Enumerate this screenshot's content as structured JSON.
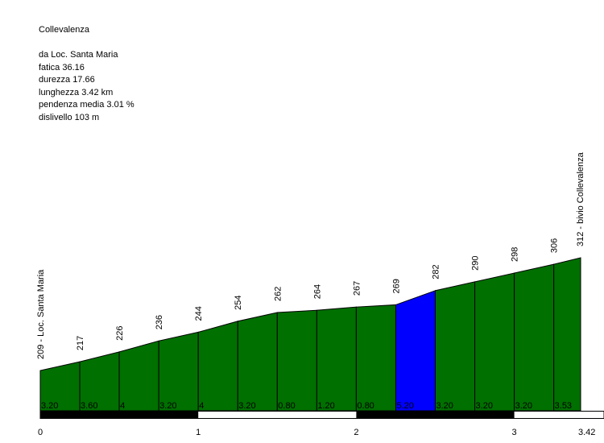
{
  "title": "Collevalenza",
  "stats": {
    "start": "da Loc. Santa Maria",
    "fatica": "fatica 36.16",
    "durezza": "durezza 17.66",
    "lunghezza": "lunghezza 3.42 km",
    "pendenza": "pendenza media 3.01 %",
    "dislivello": "dislivello 103 m"
  },
  "colors": {
    "fill": "#007000",
    "highlight": "#0000ff",
    "bar": "#000000"
  },
  "chart_data": {
    "type": "area",
    "xlabel": "",
    "ylabel": "",
    "x_unit": "km",
    "x_ticks": [
      "0",
      "1",
      "2",
      "3",
      "3.42"
    ],
    "x_tick_values": [
      0,
      1,
      2,
      3,
      3.42
    ],
    "distance_km": [
      0,
      0.25,
      0.5,
      0.75,
      1.0,
      1.25,
      1.5,
      1.75,
      2.0,
      2.25,
      2.5,
      2.75,
      3.0,
      3.25,
      3.42
    ],
    "elevation_m": [
      209,
      217,
      226,
      236,
      244,
      254,
      262,
      264,
      267,
      269,
      282,
      290,
      298,
      306,
      312
    ],
    "elevation_labels": [
      "209 - Loc. Santa Maria",
      "217",
      "226",
      "236",
      "244",
      "254",
      "262",
      "264",
      "267",
      "269",
      "282",
      "290",
      "298",
      "306",
      "312 - bivio Collevalenza"
    ],
    "segment_gradients": [
      "3.20",
      "3.60",
      "4",
      "3.20",
      "4",
      "3.20",
      "0.80",
      "1.20",
      "0.80",
      "5.20",
      "3.20",
      "3.20",
      "3.20",
      "3.53"
    ],
    "highlighted_segment": 9
  }
}
